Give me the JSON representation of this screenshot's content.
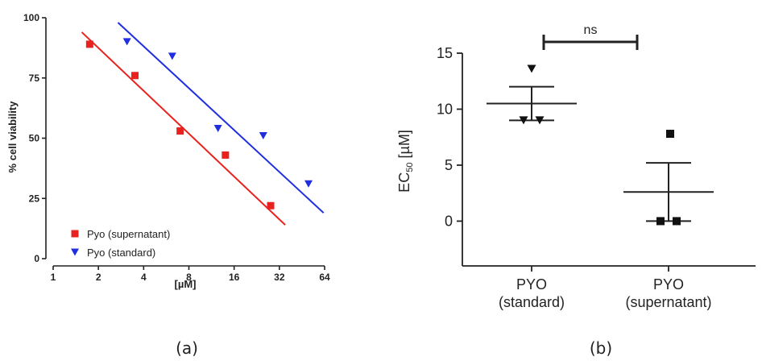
{
  "chart_data": [
    {
      "panel": "(a)",
      "type": "scatter",
      "xlabel": "[µM]",
      "ylabel": "% cell viability",
      "x_scale": "log2",
      "xlim": [
        1,
        64
      ],
      "ylim": [
        0,
        100
      ],
      "x_ticks": [
        1,
        2,
        4,
        8,
        16,
        32,
        64
      ],
      "y_ticks": [
        0,
        25,
        50,
        75,
        100
      ],
      "legend_position": "bottom-left",
      "series": [
        {
          "name": "Pyo (supernatant)",
          "marker": "square",
          "color": "#e8221e",
          "x": [
            1.75,
            3.5,
            7,
            14,
            28
          ],
          "y": [
            89,
            76,
            53,
            43,
            22
          ],
          "fit_line": {
            "x": [
              1.55,
              35
            ],
            "y": [
              94,
              14
            ]
          }
        },
        {
          "name": "Pyo (standard)",
          "marker": "triangle-down",
          "color": "#1f2fe0",
          "x": [
            3.1,
            6.2,
            12.5,
            25,
            50
          ],
          "y": [
            90,
            84,
            54,
            51,
            31
          ],
          "fit_line": {
            "x": [
              2.7,
              63
            ],
            "y": [
              98,
              19
            ]
          }
        }
      ]
    },
    {
      "panel": "(b)",
      "type": "scatter",
      "ylabel_main": "EC",
      "ylabel_sub": "50",
      "ylabel_unit": " [µM]",
      "ylim": [
        -4,
        15
      ],
      "y_ticks": [
        0,
        5,
        10,
        15
      ],
      "categories": [
        "PYO\n(standard)",
        "PYO\n(supernatant)"
      ],
      "groups": [
        {
          "category": "PYO\n(standard)",
          "marker": "triangle-down",
          "points": [
            13.6,
            9.0,
            9.0
          ],
          "mean": 10.5,
          "error_bar": [
            9.0,
            12.0
          ]
        },
        {
          "category": "PYO\n(supernatant)",
          "marker": "square",
          "points": [
            7.8,
            0.0,
            0.0
          ],
          "mean": 2.6,
          "error_bar": [
            0.0,
            5.2
          ]
        }
      ],
      "significance": "ns"
    }
  ],
  "labels": {
    "panel_a": "(a)",
    "panel_b": "(b)"
  }
}
